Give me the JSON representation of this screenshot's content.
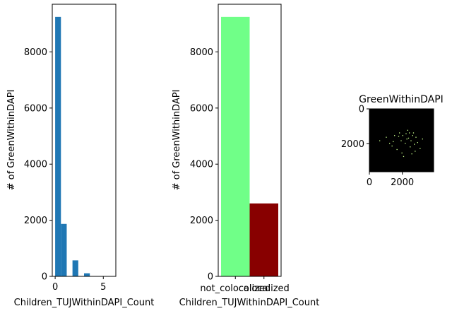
{
  "chart_data": [
    {
      "type": "bar",
      "title": "",
      "xlabel": "Children_TUJWithinDAPI_Count",
      "ylabel": "# of GreenWithinDAPI",
      "x_bins": [
        [
          0,
          0.6
        ],
        [
          0.6,
          1.2
        ],
        [
          1.8,
          2.4
        ],
        [
          3.0,
          3.6
        ],
        [
          5.4,
          6.0
        ]
      ],
      "values": [
        9250,
        1870,
        570,
        110,
        5
      ],
      "xlim": [
        -0.3,
        6.3
      ],
      "ylim": [
        0,
        9700
      ],
      "xticks": [
        0,
        5
      ],
      "yticks": [
        0,
        2000,
        4000,
        6000,
        8000
      ],
      "color": "#1f77b4",
      "grid": false,
      "legend": "none"
    },
    {
      "type": "bar",
      "title": "",
      "xlabel": "Children_TUJWithinDAPI_Count",
      "ylabel": "# of GreenWithinDAPI",
      "categories": [
        "not_colocalized",
        "colocalized"
      ],
      "values": [
        9250,
        2600
      ],
      "colors": [
        "#70ff88",
        "#880000"
      ],
      "ylim": [
        0,
        9700
      ],
      "yticks": [
        0,
        2000,
        4000,
        6000,
        8000
      ],
      "grid": false,
      "legend": "none"
    },
    {
      "type": "heatmap",
      "title": "GreenWithinDAPI",
      "xlim": [
        0,
        3900
      ],
      "ylim": [
        3600,
        0
      ],
      "xticks": [
        0,
        2000
      ],
      "yticks": [
        0,
        2000
      ],
      "background": "#000000",
      "point_color": "#c8ff8c",
      "points_x": [
        600,
        1000,
        1420,
        2650,
        1800,
        2000,
        2200,
        2400,
        2600,
        2800,
        2250,
        1900,
        2350,
        2500,
        1500,
        2900,
        2700,
        2150,
        1350,
        2450,
        3050,
        1650,
        2750,
        1950,
        2550,
        2050,
        3200,
        1200,
        2300,
        1750
      ],
      "points_y": [
        1800,
        1600,
        1850,
        1350,
        1350,
        1500,
        1400,
        1350,
        1500,
        1600,
        1700,
        1800,
        1650,
        1800,
        1500,
        1900,
        2000,
        1950,
        2100,
        2150,
        2250,
        2300,
        2400,
        2500,
        2550,
        2700,
        1700,
        1950,
        1200,
        1550
      ],
      "grid": false,
      "legend": "none"
    }
  ]
}
